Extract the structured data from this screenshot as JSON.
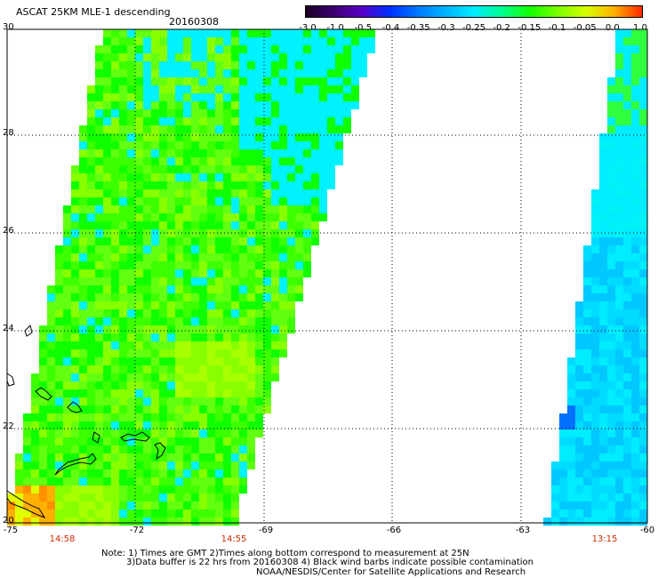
{
  "header": {
    "title": "ASCAT 25KM MLE-1 descending",
    "date": "20160308"
  },
  "colorbar": {
    "labels": [
      "-3.0",
      "-1.0",
      "-0.5",
      "-0.4",
      "-0.35",
      "-0.3",
      "-0.25",
      "-0.2",
      "-0.15",
      "-0.1",
      "-0.05",
      "0.0",
      "1.0"
    ],
    "colors": [
      "#1a0024",
      "#3d0070",
      "#5a00c8",
      "#0030ff",
      "#0078ff",
      "#00b4ff",
      "#00ecff",
      "#00ff90",
      "#14ff00",
      "#7cff00",
      "#d8ff00",
      "#ffb000",
      "#ff2800"
    ]
  },
  "map": {
    "y_ticks": [
      "30",
      "28",
      "26",
      "24",
      "22",
      "20"
    ],
    "x_ticks": [
      "-75",
      "-72",
      "-69",
      "-66",
      "-63",
      "-60"
    ],
    "times": [
      "14:58",
      "14:55",
      "13:15"
    ],
    "left_swath_palette": [
      "#00f2ff",
      "#10ff00",
      "#3cff00",
      "#62ff10",
      "#88ff00",
      "#a8ff00"
    ],
    "right_swath_palette": [
      "#00ecff",
      "#00dcff",
      "#00c8ff",
      "#00f2f8",
      "#30ff40"
    ]
  },
  "notes": {
    "line1": "Note: 1) Times are GMT 2)Times along bottom correspond to measurement at 25N",
    "line2": "3)Data buffer is 22 hrs from 20160308 4) Black wind barbs indicate possible contamination",
    "line3": "NOAA/NESDIS/Center for Satellite Applications and Research"
  }
}
